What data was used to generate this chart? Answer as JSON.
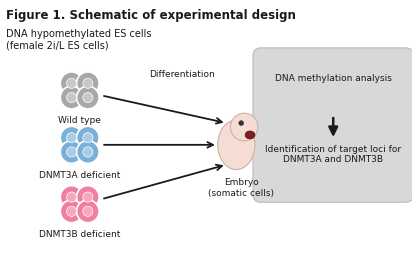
{
  "title": "Figure 1. Schematic of experimental design",
  "background_color": "#ffffff",
  "title_fontsize": 8.5,
  "title_fontweight": "bold",
  "left_label_line1": "DNA hypomethylated ES cells",
  "left_label_line2": "(female 2i/L ES cells)",
  "cell_labels": [
    "Wild type",
    "DNMT3A deficient",
    "DNMT3B deficient"
  ],
  "cell_colors": [
    "#a8a8a8",
    "#7ab0d8",
    "#f07fa0"
  ],
  "cell_nucleus_colors": [
    "#c8c8c8",
    "#a8cce8",
    "#f8a8be"
  ],
  "differentiation_label": "Differentiation",
  "embryo_label": "Embryo\n(somatic cells)",
  "box_color": "#d8d8d8",
  "box_line1": "DNA methylation analysis",
  "box_line2": "Identification of target loci for\nDNMT3A and DNMT3B",
  "arrow_color": "#1a1a1a",
  "font_size_labels": 6.5,
  "font_size_box": 6.5
}
